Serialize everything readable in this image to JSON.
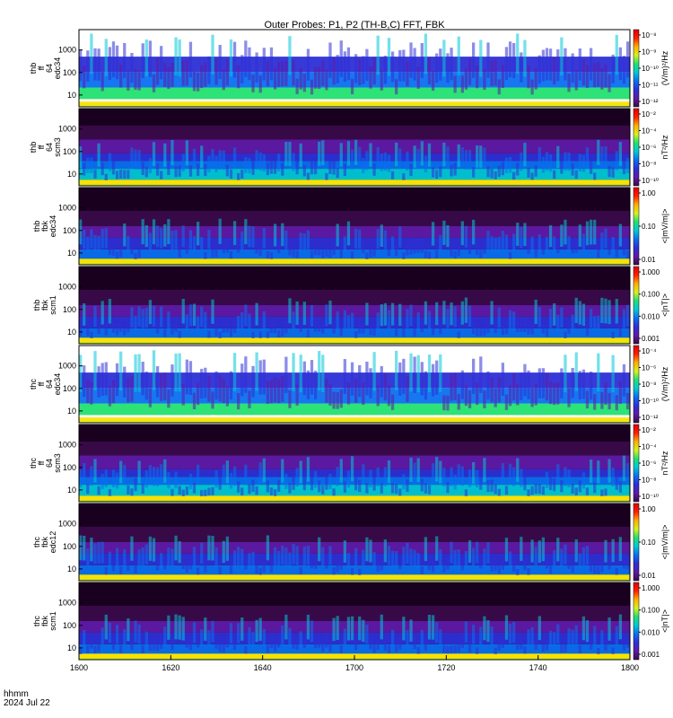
{
  "chart_data": {
    "type": "heatmap",
    "title": "Outer Probes: P1, P2 (TH-B,C) FFT, FBK",
    "time_label_lines": [
      "hhmm",
      "2024 Jul 22"
    ],
    "x_ticks": [
      "1600",
      "1620",
      "1640",
      "1700",
      "1720",
      "1740",
      "1800"
    ],
    "x_range": [
      "1600",
      "1800"
    ],
    "colorscale": [
      "#3a0a4a",
      "#5e1aa8",
      "#2d2fd6",
      "#0a70f0",
      "#00c8d8",
      "#22e070",
      "#d8f020",
      "#ffb000",
      "#ff2000",
      "#e00000"
    ],
    "panels": [
      {
        "name": "thb-ffp-e34",
        "ylabel_lines": [
          "thb",
          "ff",
          "64",
          "edc34"
        ],
        "y_ticks": [
          "10",
          "100",
          "1000"
        ],
        "y_scale": "log",
        "colorbar_ticks": [
          "10⁻⁸",
          "10⁻⁹",
          "10⁻¹⁰",
          "10⁻¹¹",
          "10⁻¹²"
        ],
        "colorbar_label": "(V/m)²/Hz"
      },
      {
        "name": "thb-ffp-scm3",
        "ylabel_lines": [
          "thb",
          "ff",
          "64",
          "scm3"
        ],
        "y_ticks": [
          "10",
          "100",
          "1000"
        ],
        "y_scale": "log",
        "colorbar_ticks": [
          "10⁻²",
          "10⁻⁴",
          "10⁻⁶",
          "10⁻⁸",
          "10⁻¹⁰"
        ],
        "colorbar_label": "nT²/Hz"
      },
      {
        "name": "thb-fbk-e34",
        "ylabel_lines": [
          "thb",
          "fbk",
          "edc34"
        ],
        "y_ticks": [
          "10",
          "100",
          "1000"
        ],
        "y_scale": "log",
        "colorbar_ticks": [
          "1.00",
          "0.10",
          "0.01"
        ],
        "colorbar_label": "<|mV/m|>"
      },
      {
        "name": "thb-fbk-scm1",
        "ylabel_lines": [
          "thb",
          "fbk",
          "scm1"
        ],
        "y_ticks": [
          "10",
          "100",
          "1000"
        ],
        "y_scale": "log",
        "colorbar_ticks": [
          "1.000",
          "0.100",
          "0.010",
          "0.001"
        ],
        "colorbar_label": "<|nT|>"
      },
      {
        "name": "thc-ffp-e34",
        "ylabel_lines": [
          "thc",
          "ff",
          "64",
          "edc34"
        ],
        "y_ticks": [
          "10",
          "100",
          "1000"
        ],
        "y_scale": "log",
        "colorbar_ticks": [
          "10⁻⁴",
          "10⁻⁶",
          "10⁻⁸",
          "10⁻¹⁰",
          "10⁻¹²"
        ],
        "colorbar_label": "(V/m)²/Hz"
      },
      {
        "name": "thc-ffp-scm3",
        "ylabel_lines": [
          "thc",
          "ff",
          "64",
          "scm3"
        ],
        "y_ticks": [
          "10",
          "100",
          "1000"
        ],
        "y_scale": "log",
        "colorbar_ticks": [
          "10⁻²",
          "10⁻⁴",
          "10⁻⁶",
          "10⁻⁸",
          "10⁻¹⁰"
        ],
        "colorbar_label": "nT²/Hz"
      },
      {
        "name": "thc-fbk-e12",
        "ylabel_lines": [
          "thc",
          "fbk",
          "edc12"
        ],
        "y_ticks": [
          "10",
          "100",
          "1000"
        ],
        "y_scale": "log",
        "colorbar_ticks": [
          "1.00",
          "0.10",
          "0.01"
        ],
        "colorbar_label": "<|mV/m|>"
      },
      {
        "name": "thc-fbk-scm1",
        "ylabel_lines": [
          "thc",
          "fbk",
          "scm1"
        ],
        "y_ticks": [
          "10",
          "100",
          "1000"
        ],
        "y_scale": "log",
        "colorbar_ticks": [
          "1.000",
          "0.100",
          "0.010",
          "0.001"
        ],
        "colorbar_label": "<|nT|>"
      }
    ]
  }
}
